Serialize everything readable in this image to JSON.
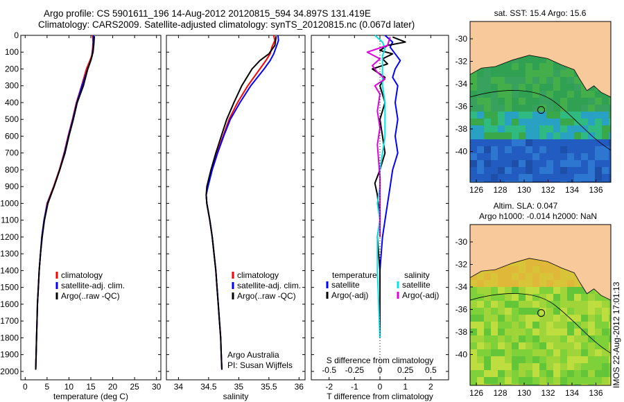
{
  "title_line1": "Argo profile: CS 5901611_196 14-Aug-2012 20120815_594 34.897S 131.419E",
  "title_line2": "Climatology: CARS2009. Satellite-adjusted climatology: synTS_20120815.nc (0.067d later)",
  "credit_line1": "Argo Australia",
  "credit_line2": "PI: Susan Wijffels",
  "side_stamp": "IMOS 22-Aug-2012 17:01:13",
  "colors": {
    "climatology": "#ff0000",
    "satellite": "#0000ff",
    "argo": "#000000",
    "sal_satellite": "#00e5e5",
    "sal_argo": "#e000e0",
    "land": "#f7c99b"
  },
  "depth_axis": {
    "ylim": [
      0,
      2050
    ],
    "ticks": [
      0,
      100,
      200,
      300,
      400,
      500,
      600,
      700,
      800,
      900,
      1000,
      1100,
      1200,
      1300,
      1400,
      1500,
      1600,
      1700,
      1800,
      1900,
      2000
    ]
  },
  "chart_data": [
    {
      "type": "line",
      "name": "temperature",
      "xlabel": "temperature (deg C)",
      "xlim": [
        -1,
        31
      ],
      "xticks": [
        0,
        5,
        10,
        15,
        20,
        25,
        30
      ],
      "legend": [
        "climatology",
        "satellite-adj. clim.",
        "Argo(..raw -QC)"
      ],
      "series": [
        {
          "name": "climatology",
          "color": "#ff0000",
          "points": [
            [
              15.4,
              0
            ],
            [
              15.5,
              40
            ],
            [
              15.4,
              80
            ],
            [
              15.2,
              120
            ],
            [
              14.8,
              150
            ],
            [
              14.0,
              200
            ],
            [
              12.9,
              300
            ],
            [
              11.7,
              400
            ],
            [
              10.8,
              500
            ],
            [
              9.8,
              600
            ],
            [
              8.9,
              700
            ],
            [
              7.8,
              800
            ],
            [
              6.5,
              900
            ],
            [
              5.0,
              1000
            ],
            [
              4.3,
              1100
            ],
            [
              3.8,
              1200
            ],
            [
              3.5,
              1300
            ],
            [
              3.2,
              1400
            ],
            [
              3.0,
              1500
            ],
            [
              2.8,
              1600
            ],
            [
              2.7,
              1700
            ],
            [
              2.6,
              1800
            ],
            [
              2.5,
              1900
            ],
            [
              2.4,
              1990
            ]
          ]
        },
        {
          "name": "satellite-adj. clim.",
          "color": "#0000ff",
          "points": [
            [
              15.6,
              0
            ],
            [
              15.6,
              40
            ],
            [
              15.5,
              80
            ],
            [
              15.3,
              120
            ],
            [
              15.0,
              150
            ],
            [
              14.3,
              200
            ],
            [
              13.0,
              300
            ],
            [
              11.8,
              400
            ],
            [
              10.9,
              500
            ],
            [
              9.9,
              600
            ],
            [
              9.0,
              700
            ],
            [
              7.9,
              800
            ],
            [
              6.6,
              900
            ],
            [
              5.1,
              1000
            ],
            [
              4.3,
              1100
            ],
            [
              3.8,
              1200
            ],
            [
              3.5,
              1300
            ],
            [
              3.2,
              1400
            ],
            [
              3.0,
              1500
            ],
            [
              2.8,
              1600
            ],
            [
              2.7,
              1700
            ],
            [
              2.6,
              1800
            ],
            [
              2.5,
              1900
            ],
            [
              2.4,
              1990
            ]
          ]
        },
        {
          "name": "Argo(..raw -QC)",
          "color": "#000000",
          "points": [
            [
              15.8,
              5
            ],
            [
              15.7,
              50
            ],
            [
              15.5,
              100
            ],
            [
              15.1,
              140
            ],
            [
              14.3,
              200
            ],
            [
              13.3,
              300
            ],
            [
              11.9,
              400
            ],
            [
              11.0,
              500
            ],
            [
              10.0,
              600
            ],
            [
              9.1,
              700
            ],
            [
              7.9,
              800
            ],
            [
              6.6,
              900
            ],
            [
              5.2,
              1000
            ],
            [
              4.4,
              1100
            ],
            [
              3.9,
              1200
            ],
            [
              3.5,
              1300
            ],
            [
              3.2,
              1400
            ],
            [
              3.0,
              1500
            ],
            [
              2.8,
              1600
            ],
            [
              2.7,
              1700
            ],
            [
              2.6,
              1800
            ],
            [
              2.5,
              1900
            ],
            [
              2.4,
              1990
            ]
          ]
        }
      ]
    },
    {
      "type": "line",
      "name": "salinity",
      "xlabel": "salinity",
      "xlim": [
        33.8,
        36.1
      ],
      "xticks": [
        34,
        34.5,
        35,
        35.5,
        36
      ],
      "legend": [
        "climatology",
        "satellite-adj. clim.",
        "Argo(..raw -QC)"
      ],
      "series": [
        {
          "name": "climatology",
          "color": "#ff0000",
          "points": [
            [
              35.58,
              0
            ],
            [
              35.6,
              30
            ],
            [
              35.55,
              70
            ],
            [
              35.52,
              110
            ],
            [
              35.45,
              150
            ],
            [
              35.35,
              200
            ],
            [
              35.15,
              300
            ],
            [
              34.98,
              400
            ],
            [
              34.84,
              500
            ],
            [
              34.74,
              600
            ],
            [
              34.64,
              700
            ],
            [
              34.55,
              800
            ],
            [
              34.48,
              900
            ],
            [
              34.46,
              950
            ],
            [
              34.47,
              1000
            ],
            [
              34.52,
              1100
            ],
            [
              34.56,
              1200
            ],
            [
              34.59,
              1300
            ],
            [
              34.62,
              1400
            ],
            [
              34.64,
              1500
            ],
            [
              34.66,
              1600
            ],
            [
              34.68,
              1700
            ],
            [
              34.7,
              1800
            ],
            [
              34.71,
              1900
            ],
            [
              34.72,
              1990
            ]
          ]
        },
        {
          "name": "satellite-adj. clim.",
          "color": "#0000ff",
          "points": [
            [
              35.65,
              0
            ],
            [
              35.66,
              30
            ],
            [
              35.62,
              70
            ],
            [
              35.58,
              110
            ],
            [
              35.52,
              150
            ],
            [
              35.42,
              200
            ],
            [
              35.2,
              300
            ],
            [
              35.02,
              400
            ],
            [
              34.86,
              500
            ],
            [
              34.75,
              600
            ],
            [
              34.65,
              700
            ],
            [
              34.56,
              800
            ],
            [
              34.49,
              900
            ],
            [
              34.46,
              950
            ],
            [
              34.47,
              1000
            ],
            [
              34.52,
              1100
            ],
            [
              34.56,
              1200
            ],
            [
              34.59,
              1300
            ],
            [
              34.62,
              1400
            ],
            [
              34.64,
              1500
            ],
            [
              34.66,
              1600
            ],
            [
              34.68,
              1700
            ],
            [
              34.7,
              1800
            ],
            [
              34.71,
              1900
            ],
            [
              34.72,
              1990
            ]
          ]
        },
        {
          "name": "Argo(..raw -QC)",
          "color": "#000000",
          "points": [
            [
              35.62,
              5
            ],
            [
              35.6,
              60
            ],
            [
              35.5,
              110
            ],
            [
              35.35,
              150
            ],
            [
              35.22,
              200
            ],
            [
              35.05,
              300
            ],
            [
              34.92,
              400
            ],
            [
              34.8,
              500
            ],
            [
              34.71,
              600
            ],
            [
              34.62,
              700
            ],
            [
              34.54,
              800
            ],
            [
              34.47,
              900
            ],
            [
              34.46,
              950
            ],
            [
              34.47,
              1000
            ],
            [
              34.52,
              1100
            ],
            [
              34.56,
              1200
            ],
            [
              34.59,
              1300
            ],
            [
              34.62,
              1400
            ],
            [
              34.64,
              1500
            ],
            [
              34.66,
              1600
            ],
            [
              34.68,
              1700
            ],
            [
              34.7,
              1800
            ],
            [
              34.71,
              1900
            ],
            [
              34.72,
              1990
            ]
          ]
        }
      ]
    },
    {
      "type": "line",
      "name": "differences",
      "xlabel": "T difference from climatology",
      "xlabel_top": "S difference from climatology",
      "xlim": [
        -2.7,
        2.7
      ],
      "xticks": [
        -2,
        -1,
        0,
        1,
        2
      ],
      "xticks_top": [
        "-0.5",
        "-0.25",
        "0",
        "0.25",
        "0.5"
      ],
      "legend_headers": [
        "temperature",
        "salinity"
      ],
      "legend": [
        "satellite",
        "Argo(-adj)",
        "satellite",
        "Argo(-adj)"
      ],
      "series": [
        {
          "name": "temperature satellite",
          "color": "#0000ff",
          "points": [
            [
              0.2,
              0
            ],
            [
              0.5,
              40
            ],
            [
              0.4,
              70
            ],
            [
              0.6,
              110
            ],
            [
              0.8,
              150
            ],
            [
              0.6,
              200
            ],
            [
              0.5,
              250
            ],
            [
              0.7,
              300
            ],
            [
              0.6,
              400
            ],
            [
              0.7,
              500
            ],
            [
              0.6,
              600
            ],
            [
              0.7,
              700
            ],
            [
              0.5,
              800
            ],
            [
              0.4,
              900
            ],
            [
              0.3,
              1000
            ],
            [
              0.2,
              1100
            ],
            [
              0.1,
              1200
            ],
            [
              0.05,
              1300
            ],
            [
              0.0,
              1400
            ],
            [
              0.0,
              1600
            ],
            [
              0.0,
              1800
            ]
          ]
        },
        {
          "name": "temperature Argo(-adj)",
          "color": "#000000",
          "points": [
            [
              0.5,
              10
            ],
            [
              1.0,
              40
            ],
            [
              0.3,
              60
            ],
            [
              0.0,
              90
            ],
            [
              0.5,
              110
            ],
            [
              0.1,
              140
            ],
            [
              0.3,
              170
            ],
            [
              -0.3,
              200
            ],
            [
              0.2,
              250
            ],
            [
              0.0,
              300
            ],
            [
              0.2,
              400
            ],
            [
              0.0,
              500
            ],
            [
              0.1,
              600
            ],
            [
              0.2,
              700
            ],
            [
              0.0,
              800
            ],
            [
              -0.2,
              880
            ],
            [
              -0.1,
              950
            ],
            [
              0.0,
              1100
            ],
            [
              -0.1,
              1200
            ],
            [
              0.0,
              1400
            ],
            [
              0.0,
              1600
            ],
            [
              0.0,
              1750
            ]
          ]
        },
        {
          "name": "salinity satellite",
          "color": "#00e5e5",
          "points": [
            [
              -0.2,
              0
            ],
            [
              0.1,
              40
            ],
            [
              0.2,
              80
            ],
            [
              0.1,
              120
            ],
            [
              0.1,
              200
            ],
            [
              0.1,
              300
            ],
            [
              0.2,
              400
            ],
            [
              0.2,
              500
            ],
            [
              0.2,
              600
            ],
            [
              0.1,
              700
            ],
            [
              0.0,
              800
            ],
            [
              0.0,
              900
            ],
            [
              -0.1,
              1000
            ],
            [
              0.0,
              1100
            ],
            [
              -0.1,
              1200
            ],
            [
              -0.1,
              1400
            ],
            [
              -0.05,
              1600
            ],
            [
              0.0,
              1800
            ]
          ]
        },
        {
          "name": "salinity Argo(-adj)",
          "color": "#e000e0",
          "points": [
            [
              0.4,
              10
            ],
            [
              0.3,
              60
            ],
            [
              -0.5,
              100
            ],
            [
              0.0,
              140
            ],
            [
              -0.3,
              180
            ],
            [
              -0.1,
              220
            ],
            [
              0.2,
              260
            ],
            [
              -0.2,
              300
            ],
            [
              0.0,
              350
            ],
            [
              -0.1,
              450
            ],
            [
              0.0,
              550
            ],
            [
              -0.1,
              650
            ],
            [
              -0.05,
              750
            ],
            [
              0.0,
              850
            ],
            [
              0.0,
              1000
            ],
            [
              0.0,
              1200
            ]
          ]
        }
      ]
    }
  ],
  "map_top": {
    "title": "sat. SST: 15.4 Argo: 15.6",
    "yticks": [
      "-30",
      "-32",
      "-34",
      "-36",
      "-38",
      "-40"
    ],
    "xticks": [
      "126",
      "128",
      "130",
      "132",
      "134",
      "136"
    ]
  },
  "map_bottom": {
    "title_line1": "Altim. SLA: 0.047",
    "title_line2": "Argo h1000: -0.014 h2000: NaN",
    "yticks": [
      "-30",
      "-32",
      "-34",
      "-36",
      "-38",
      "-40"
    ],
    "xticks": [
      "126",
      "128",
      "130",
      "132",
      "134",
      "136"
    ]
  }
}
